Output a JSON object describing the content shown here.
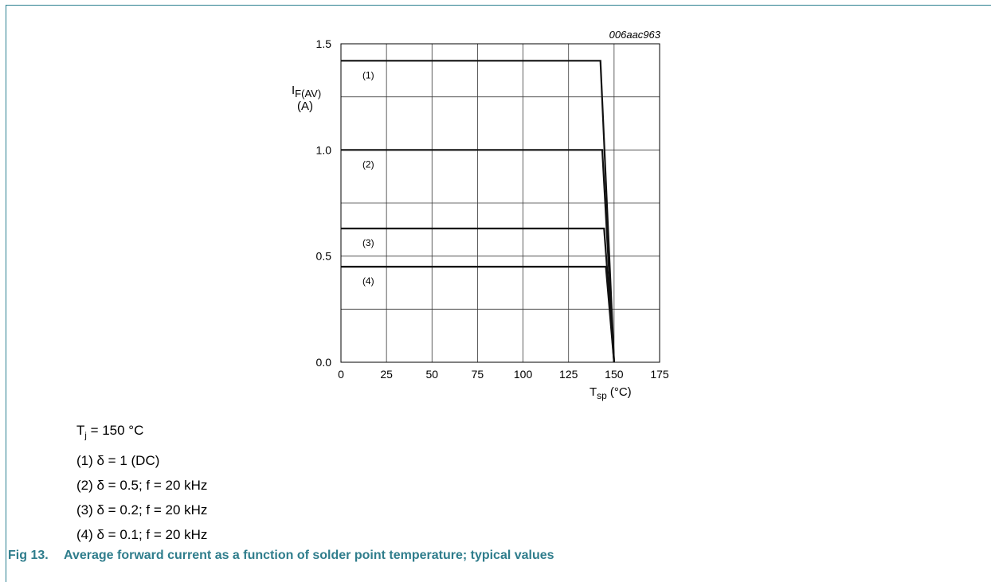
{
  "chart_data": {
    "type": "line",
    "code": "006aac963",
    "ylabel": {
      "main": "I",
      "sub": "F(AV)",
      "unit": "(A)"
    },
    "xlabel": {
      "main": "T",
      "sub": "sp",
      "unit": "(°C)"
    },
    "xlim": [
      0,
      175
    ],
    "ylim": [
      0,
      1.5
    ],
    "x_ticks": [
      0,
      25,
      50,
      75,
      100,
      125,
      150,
      175
    ],
    "x_tick_labels": [
      "0",
      "25",
      "50",
      "75",
      "100",
      "125",
      "150",
      "175"
    ],
    "y_ticks": [
      0,
      0.5,
      1.0,
      1.5
    ],
    "y_tick_labels": [
      "0.0",
      "0.5",
      "1.0",
      "1.5"
    ],
    "grid": true,
    "series": [
      {
        "label": "(1)",
        "x": [
          0,
          142.5,
          150
        ],
        "y": [
          1.42,
          1.42,
          0
        ]
      },
      {
        "label": "(2)",
        "x": [
          0,
          143.5,
          150
        ],
        "y": [
          1.0,
          1.0,
          0
        ]
      },
      {
        "label": "(3)",
        "x": [
          0,
          144.5,
          150
        ],
        "y": [
          0.63,
          0.63,
          0
        ]
      },
      {
        "label": "(4)",
        "x": [
          0,
          145.5,
          150
        ],
        "y": [
          0.45,
          0.45,
          0
        ]
      }
    ]
  },
  "notes": {
    "tj_main": "T",
    "tj_sub": "j",
    "tj_value": " = 150 °C",
    "items": [
      "(1) δ = 1 (DC)",
      "(2) δ = 0.5; f = 20 kHz",
      "(3) δ = 0.2; f = 20 kHz",
      "(4) δ = 0.1; f = 20 kHz"
    ]
  },
  "caption": {
    "fig": "Fig 13.",
    "text": "Average forward current as a function of solder point temperature; typical values"
  }
}
